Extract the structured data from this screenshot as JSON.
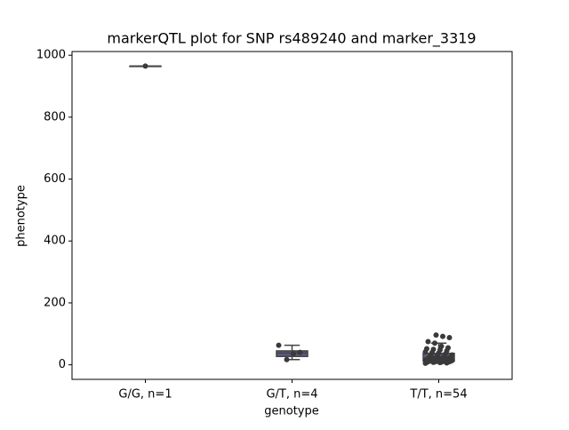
{
  "chart_data": {
    "type": "box",
    "title": "markerQTL plot for SNP rs489240 and marker_3319",
    "x_label": "genotype",
    "y_label": "phenotype",
    "categories": [
      "G/G, n=1",
      "G/T, n=4",
      "T/T, n=54"
    ],
    "boxes": [
      {
        "min": 965,
        "q1": 965,
        "median": 965,
        "q3": 965,
        "max": 965
      },
      {
        "min": 17,
        "q1": 27,
        "median": 38,
        "q3": 45,
        "max": 63
      },
      {
        "min": 5,
        "q1": 12,
        "median": 18,
        "q3": 37,
        "max": 70
      }
    ],
    "points": [
      [
        965
      ],
      [
        63,
        40,
        36,
        17
      ],
      [
        5,
        6,
        7,
        8,
        8,
        9,
        9,
        10,
        10,
        10,
        11,
        11,
        12,
        12,
        12,
        13,
        13,
        14,
        14,
        14,
        15,
        15,
        16,
        16,
        17,
        18,
        18,
        19,
        20,
        20,
        21,
        22,
        23,
        24,
        25,
        26,
        28,
        30,
        32,
        35,
        38,
        40,
        42,
        45,
        48,
        50,
        52,
        55,
        60,
        70,
        75,
        88,
        92,
        96
      ]
    ],
    "box_color": "#5a5a8a",
    "point_color": "#3a3a3a",
    "ylim": [
      -47,
      1012
    ],
    "yticks": [
      0,
      200,
      400,
      600,
      800,
      1000
    ]
  }
}
